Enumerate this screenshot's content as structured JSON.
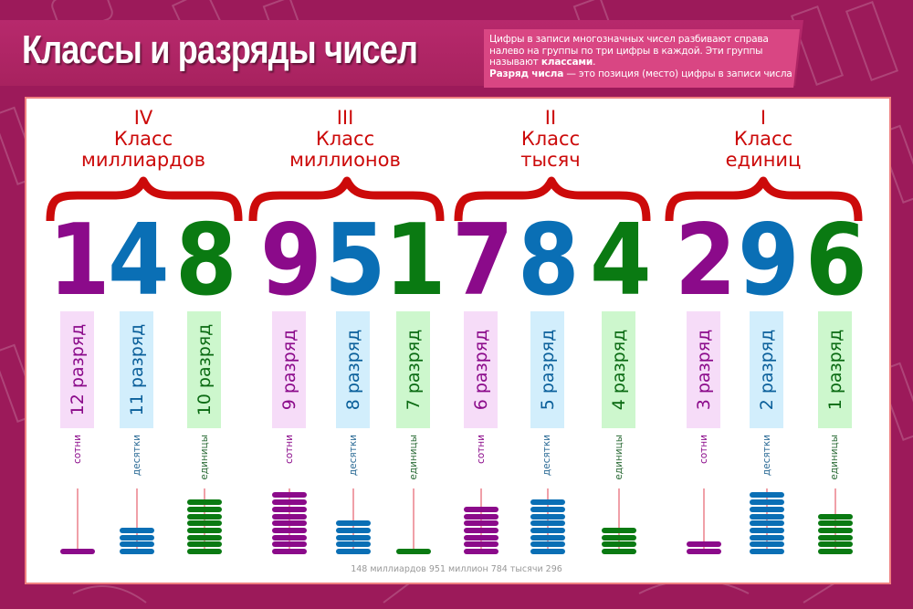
{
  "header": {
    "title": "Классы и разряды чисел",
    "description_line1": "Цифры в записи многозначных чисел разбивают справа",
    "description_line2": "налево на группы по три цифры в каждой. Эти группы",
    "description_line3_pre": "называют ",
    "description_line3_bold": "классами",
    "description_line3_post": ".",
    "description_line4_bold": "Разряд числа",
    "description_line4_post": " — это позиция (место) цифры в записи числа"
  },
  "colors": {
    "background": "#9c1a5a",
    "banner": "#b7296c",
    "description_box": "#d94683",
    "class_label": "#cc0a0a",
    "hundreds": "#8b0a8a",
    "tens": "#0a6fb5",
    "units": "#0a7a12",
    "hundreds_pill": "#f6dcf8",
    "tens_pill": "#d2eefc",
    "units_pill": "#cdf7cd",
    "rod": "#f0a0a8"
  },
  "classes": [
    {
      "roman": "IV",
      "word": "Класс",
      "name": "миллиардов"
    },
    {
      "roman": "III",
      "word": "Класс",
      "name": "миллионов"
    },
    {
      "roman": "II",
      "word": "Класс",
      "name": "тысяч"
    },
    {
      "roman": "I",
      "word": "Класс",
      "name": "единиц"
    }
  ],
  "digits": [
    {
      "value": "1",
      "rank": "12 разряд",
      "place": "сотни",
      "beads": 1
    },
    {
      "value": "4",
      "rank": "11 разряд",
      "place": "десятки",
      "beads": 4
    },
    {
      "value": "8",
      "rank": "10 разряд",
      "place": "единицы",
      "beads": 8
    },
    {
      "value": "9",
      "rank": "9 разряд",
      "place": "сотни",
      "beads": 9
    },
    {
      "value": "5",
      "rank": "8 разряд",
      "place": "десятки",
      "beads": 5
    },
    {
      "value": "1",
      "rank": "7 разряд",
      "place": "единицы",
      "beads": 1
    },
    {
      "value": "7",
      "rank": "6 разряд",
      "place": "сотни",
      "beads": 7
    },
    {
      "value": "8",
      "rank": "5 разряд",
      "place": "десятки",
      "beads": 8
    },
    {
      "value": "4",
      "rank": "4 разряд",
      "place": "единицы",
      "beads": 4
    },
    {
      "value": "2",
      "rank": "3 разряд",
      "place": "сотни",
      "beads": 2
    },
    {
      "value": "9",
      "rank": "2 разряд",
      "place": "десятки",
      "beads": 9
    },
    {
      "value": "6",
      "rank": "1 разряд",
      "place": "единицы",
      "beads": 6
    }
  ],
  "footer": {
    "number_in_words": "148 миллиардов 951 миллион 784 тысячи 296"
  }
}
